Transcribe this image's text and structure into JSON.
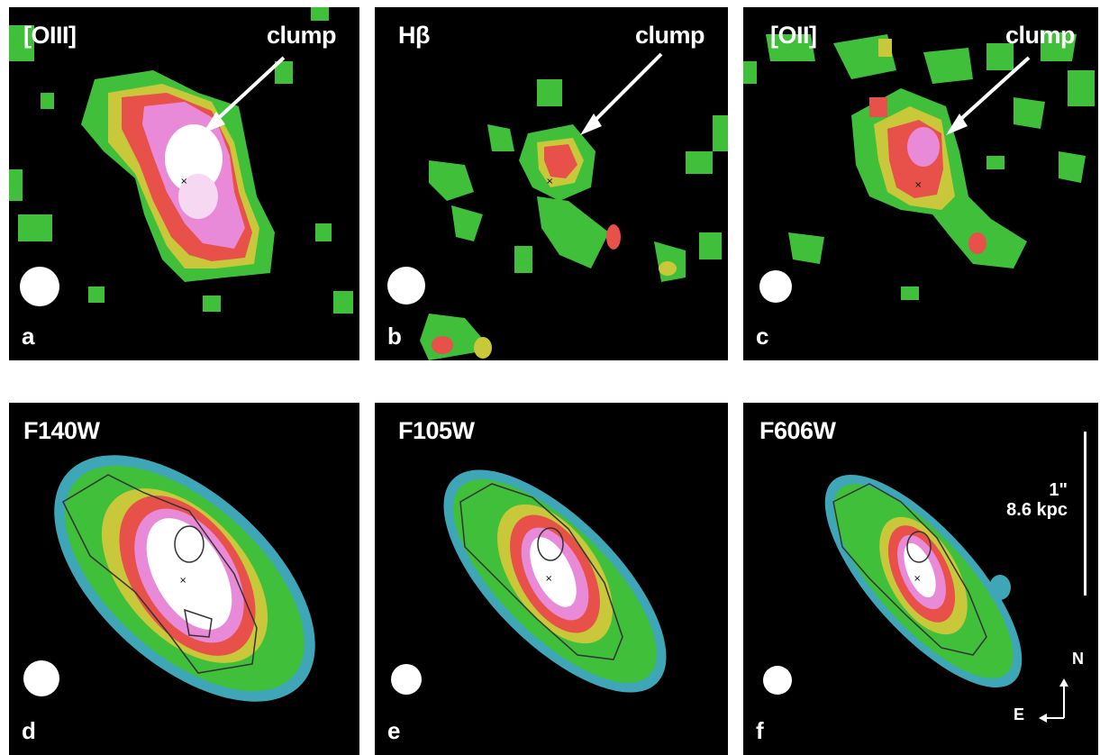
{
  "panels": {
    "a": {
      "title": "[OIII]",
      "callout": "clump",
      "letter": "a"
    },
    "b": {
      "title": "Hβ",
      "callout": "clump",
      "letter": "b"
    },
    "c": {
      "title": "[OII]",
      "callout": "clump",
      "letter": "c"
    },
    "d": {
      "title": "F140W",
      "letter": "d"
    },
    "e": {
      "title": "F105W",
      "letter": "e"
    },
    "f": {
      "title": "F606W",
      "letter": "f"
    }
  },
  "scale_bar": {
    "angular": "1\"",
    "physical": "8.6 kpc"
  },
  "compass": {
    "north": "N",
    "east": "E"
  },
  "colors": {
    "background": "#000000",
    "green": "#3fbf3a",
    "yellow": "#c8c83a",
    "red": "#e8504a",
    "pink": "#e88ad8",
    "white": "#ffffff"
  }
}
